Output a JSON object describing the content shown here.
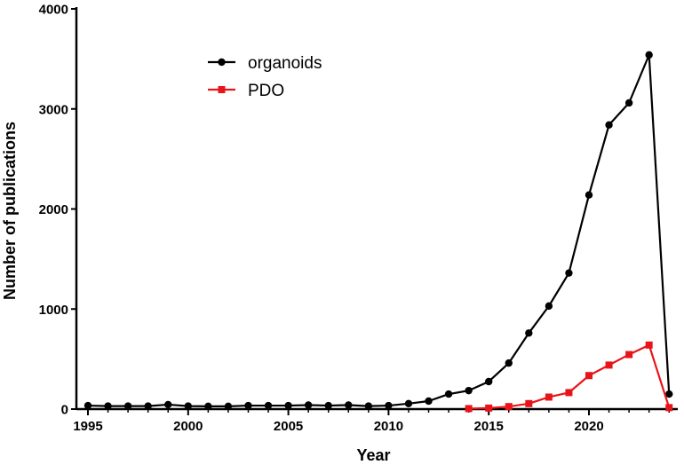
{
  "chart_data": {
    "type": "line",
    "title": "",
    "xlabel": "Year",
    "ylabel": "Number of publications",
    "xlim": [
      1995,
      2024
    ],
    "ylim": [
      0,
      4000
    ],
    "xticks": [
      1995,
      2000,
      2005,
      2010,
      2015,
      2020
    ],
    "yticks": [
      0,
      1000,
      2000,
      3000,
      4000
    ],
    "grid": false,
    "legend_position": "top-left",
    "series": [
      {
        "name": "organoids",
        "color": "#000000",
        "marker": "circle",
        "x": [
          1995,
          1996,
          1997,
          1998,
          1999,
          2000,
          2001,
          2002,
          2003,
          2004,
          2005,
          2006,
          2007,
          2008,
          2009,
          2010,
          2011,
          2012,
          2013,
          2014,
          2015,
          2016,
          2017,
          2018,
          2019,
          2020,
          2021,
          2022,
          2023,
          2024
        ],
        "y": [
          35,
          30,
          30,
          30,
          45,
          30,
          28,
          28,
          35,
          35,
          35,
          40,
          35,
          40,
          30,
          35,
          55,
          80,
          150,
          185,
          275,
          460,
          760,
          1030,
          1360,
          2140,
          2840,
          3060,
          3540,
          150
        ]
      },
      {
        "name": "PDO",
        "color": "#e8141a",
        "marker": "square",
        "x": [
          2014,
          2015,
          2016,
          2017,
          2018,
          2019,
          2020,
          2021,
          2022,
          2023,
          2024
        ],
        "y": [
          5,
          10,
          25,
          55,
          120,
          165,
          335,
          440,
          545,
          640,
          15
        ]
      }
    ]
  }
}
